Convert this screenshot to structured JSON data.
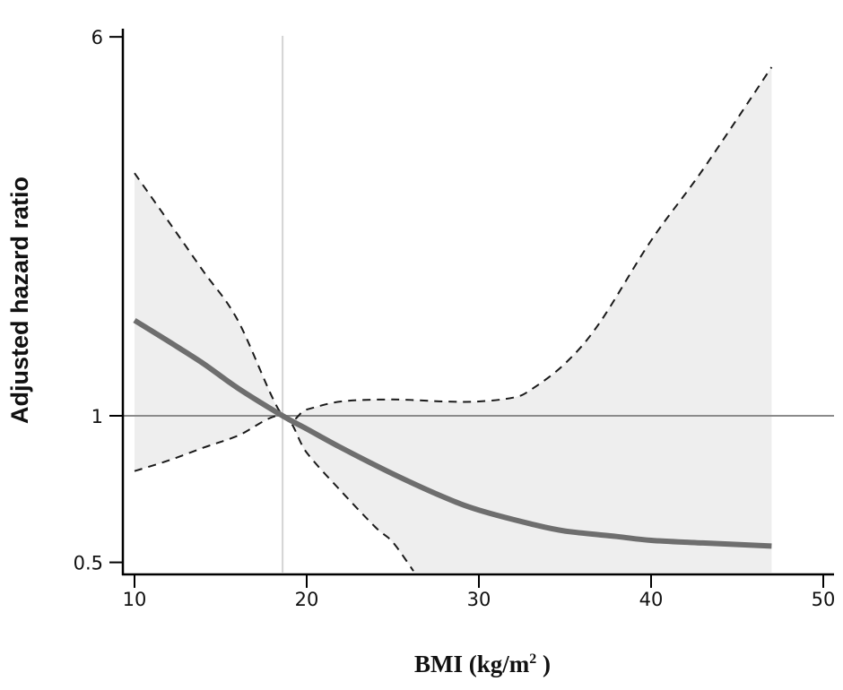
{
  "chart_data": {
    "type": "line",
    "title": "",
    "xlabel": "BMI (kg/m",
    "xlabel_superscript": "2",
    "xlabel_suffix": " )",
    "ylabel": "Adjusted hazard ratio",
    "xlim": [
      9.3,
      50.6
    ],
    "ylim": [
      0.48,
      6.3
    ],
    "yscale": "log",
    "x_ticks": [
      10,
      20,
      30,
      40,
      50
    ],
    "x_tick_labels": [
      "10",
      "20",
      "30",
      "40",
      "50"
    ],
    "y_ticks": [
      0.5,
      1,
      6
    ],
    "y_tick_labels": [
      "0.5",
      "1",
      "6"
    ],
    "grid": false,
    "reference_lines": {
      "horizontal_y": 1,
      "vertical_x": 18.6
    },
    "series": [
      {
        "name": "Adjusted hazard ratio",
        "style": "solid",
        "color": "#6e6e6e",
        "x": [
          10,
          12,
          14,
          16,
          18.6,
          20,
          22,
          25,
          28,
          30,
          33,
          35,
          38,
          40,
          43,
          47
        ],
        "y": [
          1.57,
          1.42,
          1.28,
          1.14,
          1.0,
          0.94,
          0.86,
          0.76,
          0.68,
          0.64,
          0.6,
          0.58,
          0.565,
          0.555,
          0.548,
          0.54
        ]
      },
      {
        "name": "Upper 95% CI",
        "style": "dashed",
        "color": "#1a1a1a",
        "x": [
          10,
          12,
          14,
          16,
          18.6,
          20,
          22,
          25,
          28,
          30,
          32,
          33,
          35,
          37,
          40,
          43,
          47
        ],
        "y": [
          3.15,
          2.5,
          1.98,
          1.57,
          1.0,
          1.03,
          1.07,
          1.08,
          1.07,
          1.07,
          1.09,
          1.13,
          1.28,
          1.55,
          2.29,
          3.2,
          5.2
        ]
      },
      {
        "name": "Lower 95% CI",
        "style": "dashed",
        "color": "#1a1a1a",
        "x": [
          10,
          12,
          14,
          16,
          18.6,
          20,
          22,
          24,
          25,
          26.2
        ],
        "y": [
          0.77,
          0.81,
          0.86,
          0.91,
          1.0,
          0.84,
          0.7,
          0.59,
          0.55,
          0.48
        ]
      }
    ],
    "ci_fill_color": "#eeeeee",
    "ci_lower_floor_after_x": 26.2
  }
}
